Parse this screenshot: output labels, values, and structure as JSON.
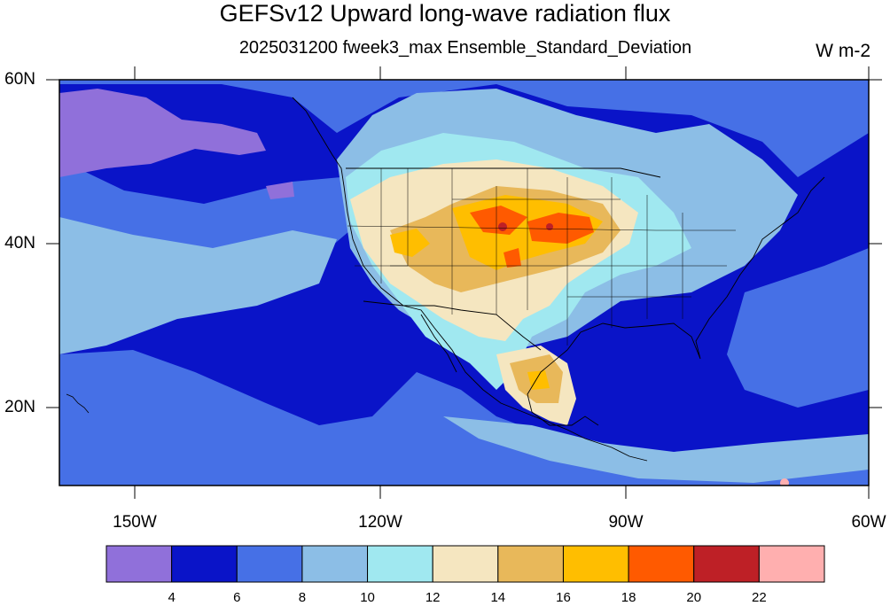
{
  "title": "GEFSv12 Upward long-wave radiation flux",
  "subtitle": "2025031200 fweek3_max Ensemble_Standard_Deviation",
  "units": "W m-2",
  "lat_labels": [
    "60N",
    "40N",
    "20N"
  ],
  "lon_labels": [
    "150W",
    "120W",
    "90W",
    "60W"
  ],
  "colorbar": {
    "colors": [
      "#9070DA",
      "#0A14C8",
      "#4670E6",
      "#8CBEE6",
      "#A0E8F0",
      "#F5E6C0",
      "#E8B85A",
      "#FFBE00",
      "#FF5A00",
      "#BE2026",
      "#FFAFAF"
    ],
    "labels": [
      "4",
      "6",
      "8",
      "10",
      "12",
      "14",
      "16",
      "18",
      "20",
      "22"
    ]
  }
}
